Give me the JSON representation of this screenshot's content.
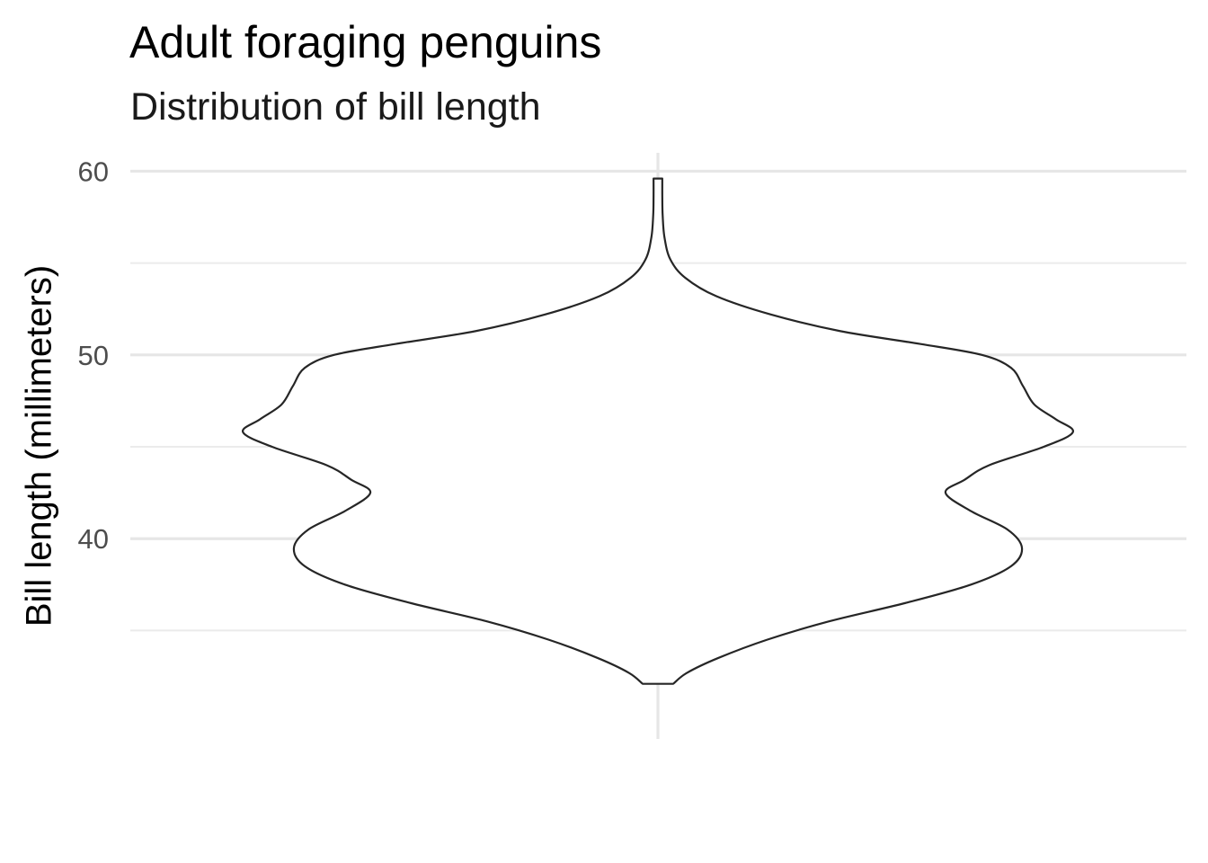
{
  "chart_data": {
    "type": "violin",
    "title": "Adult foraging penguins",
    "subtitle": "Distribution of bill length",
    "xlabel": "",
    "ylabel": "Bill length (millimeters)",
    "ylim": [
      29.1,
      61.0
    ],
    "yticks": [
      40,
      50,
      60
    ],
    "y_minor_ticks": [
      35,
      45,
      55
    ],
    "y_tick_labels": [
      "40",
      "50",
      "60"
    ],
    "grid": true,
    "legend": "none",
    "fill_color": "#ffffff",
    "outline_color": "#262626",
    "grid_color": "#ebebeb",
    "violin": {
      "y_min": 32.1,
      "y_max": 59.6,
      "density_profile": [
        {
          "y": 32.1,
          "half_width": 0.042
        },
        {
          "y": 32.7,
          "half_width": 0.08
        },
        {
          "y": 33.5,
          "half_width": 0.165
        },
        {
          "y": 34.5,
          "half_width": 0.3
        },
        {
          "y": 35.5,
          "half_width": 0.47
        },
        {
          "y": 36.5,
          "half_width": 0.68
        },
        {
          "y": 37.5,
          "half_width": 0.86
        },
        {
          "y": 38.5,
          "half_width": 0.97
        },
        {
          "y": 39.5,
          "half_width": 1.0
        },
        {
          "y": 40.5,
          "half_width": 0.96
        },
        {
          "y": 41.5,
          "half_width": 0.86
        },
        {
          "y": 42.5,
          "half_width": 0.79
        },
        {
          "y": 43.2,
          "half_width": 0.842
        },
        {
          "y": 44.0,
          "half_width": 0.91
        },
        {
          "y": 45.0,
          "half_width": 1.06
        },
        {
          "y": 45.8,
          "half_width": 1.14
        },
        {
          "y": 46.5,
          "half_width": 1.093
        },
        {
          "y": 47.3,
          "half_width": 1.034
        },
        {
          "y": 48.3,
          "half_width": 1.003
        },
        {
          "y": 49.3,
          "half_width": 0.97
        },
        {
          "y": 50.0,
          "half_width": 0.89
        },
        {
          "y": 50.6,
          "half_width": 0.72
        },
        {
          "y": 51.3,
          "half_width": 0.5
        },
        {
          "y": 52.2,
          "half_width": 0.31
        },
        {
          "y": 53.2,
          "half_width": 0.16
        },
        {
          "y": 54.2,
          "half_width": 0.075
        },
        {
          "y": 55.2,
          "half_width": 0.034
        },
        {
          "y": 56.4,
          "half_width": 0.018
        },
        {
          "y": 57.6,
          "half_width": 0.013
        },
        {
          "y": 58.6,
          "half_width": 0.012
        },
        {
          "y": 59.6,
          "half_width": 0.012
        }
      ]
    }
  }
}
